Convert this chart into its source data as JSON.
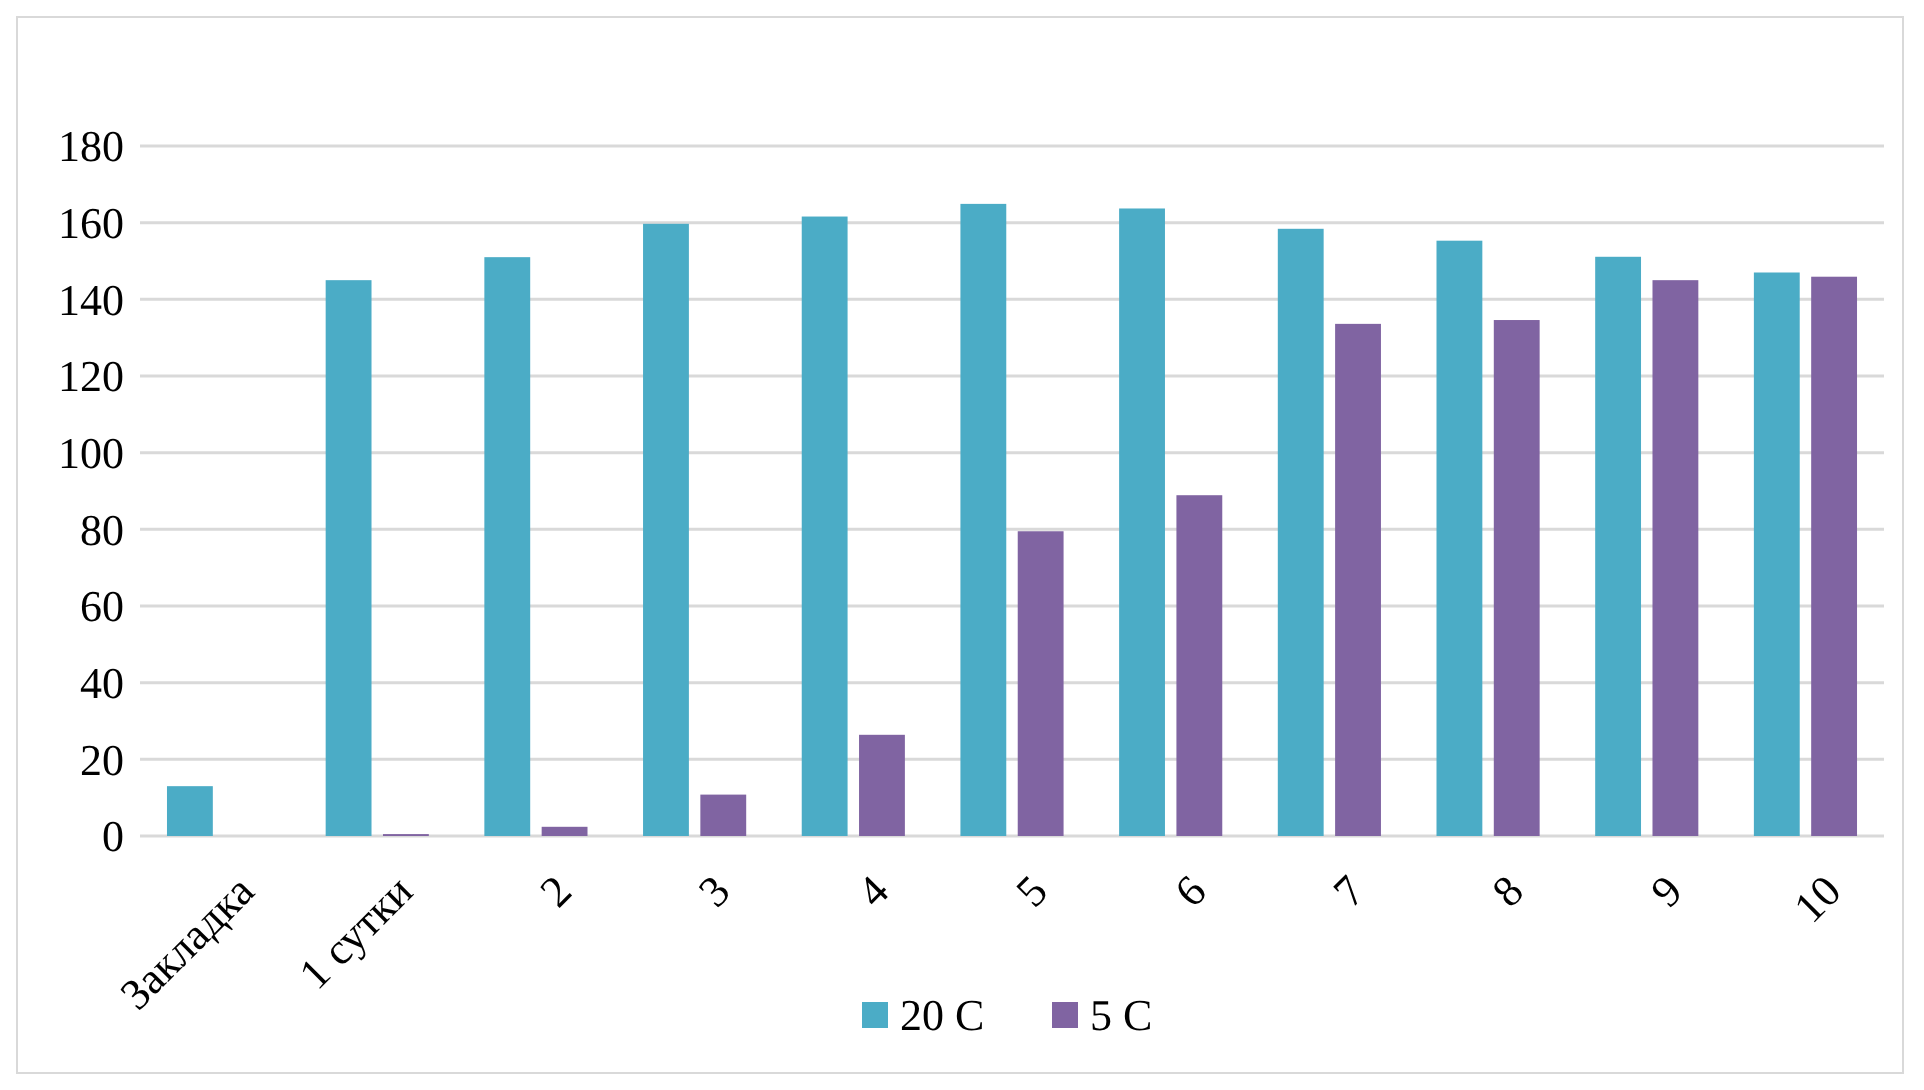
{
  "chart_data": {
    "type": "bar",
    "categories": [
      "Закладка",
      "1 сутки",
      "2",
      "3",
      "4",
      "5",
      "6",
      "7",
      "8",
      "9",
      "10"
    ],
    "series": [
      {
        "name": "20 C",
        "color": "#4bacc6",
        "values": [
          13,
          145,
          151,
          159.7,
          161.6,
          164.9,
          163.7,
          158.4,
          155.3,
          151.1,
          147
        ]
      },
      {
        "name": "5 C",
        "color": "#8064a2",
        "values": [
          0,
          0.5,
          2.4,
          10.8,
          26.4,
          79.5,
          88.9,
          133.6,
          134.6,
          145,
          145.9
        ]
      }
    ],
    "ylim": [
      0,
      180
    ],
    "yticks": [
      0,
      20,
      40,
      60,
      80,
      100,
      120,
      140,
      160,
      180
    ],
    "grid": "y",
    "legend": "bottom"
  }
}
